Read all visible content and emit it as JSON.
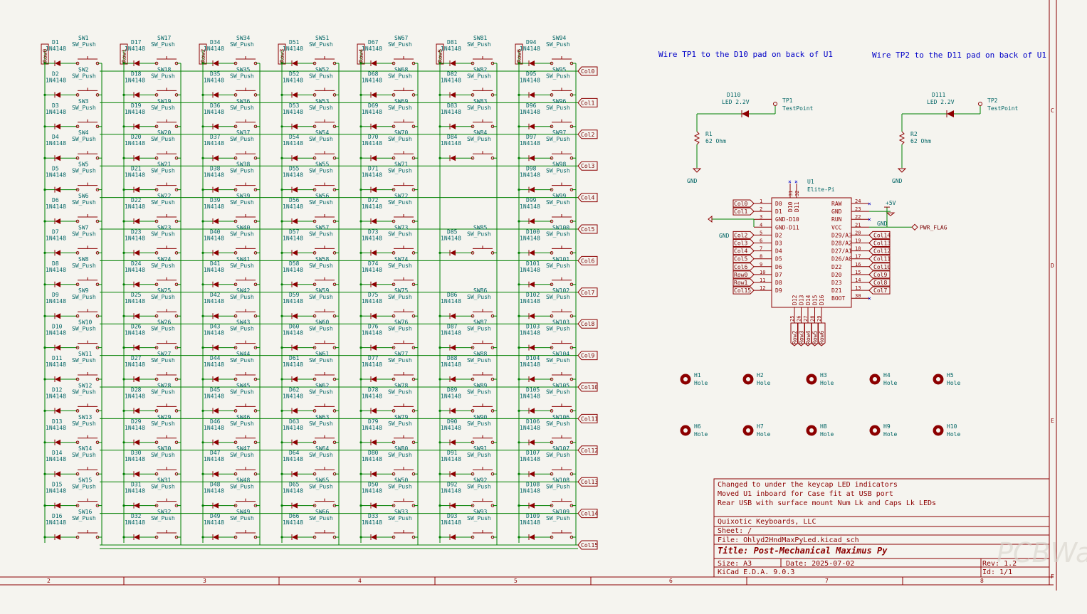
{
  "sheet": {
    "row_flags": [
      "Row0",
      "Row1",
      "Row2",
      "Row3",
      "Row4",
      "Row5",
      "Row6"
    ],
    "col_labels": [
      "Col0",
      "Col1",
      "Col2",
      "Col3",
      "Col4",
      "Col5",
      "Col6",
      "Col7",
      "Col8",
      "Col9",
      "Col10",
      "Col11",
      "Col12",
      "Col13",
      "Col14",
      "Col15"
    ],
    "diode_value": "1N4148",
    "switch_value": "SW_Push",
    "matrix_columns": [
      {
        "d": [
          "D1",
          "D2",
          "D3",
          "D4",
          "D5",
          "D6",
          "D7",
          "D8",
          "D9",
          "D10",
          "D11",
          "D12",
          "D13",
          "D14",
          "D15",
          "D16"
        ],
        "sw": [
          "SW1",
          "SW2",
          "SW3",
          "SW4",
          "SW5",
          "SW6",
          "SW7",
          "SW8",
          "SW9",
          "SW10",
          "SW11",
          "SW12",
          "SW13",
          "SW14",
          "SW15",
          "SW16"
        ]
      },
      {
        "d": [
          "D17",
          "D18",
          "D19",
          "D20",
          "D21",
          "D22",
          "D23",
          "D24",
          "D25",
          "D26",
          "D27",
          "D28",
          "D29",
          "D30",
          "D31",
          "D32"
        ],
        "sw": [
          "SW17",
          "SW18",
          "SW19",
          "SW20",
          "SW21",
          "SW22",
          "SW23",
          "SW24",
          "SW25",
          "SW26",
          "SW27",
          "SW28",
          "SW29",
          "SW30",
          "SW31",
          "SW32"
        ]
      },
      {
        "d": [
          "D34",
          "D35",
          "D36",
          "D37",
          "D38",
          "D39",
          "D40",
          "D41",
          "D42",
          "D43",
          "D44",
          "D45",
          "D46",
          "D47",
          "D48",
          "D49"
        ],
        "sw": [
          "SW34",
          "SW35",
          "SW36",
          "SW37",
          "SW38",
          "SW39",
          "SW40",
          "SW41",
          "SW42",
          "SW43",
          "SW44",
          "SW45",
          "SW46",
          "SW47",
          "SW48",
          "SW49"
        ]
      },
      {
        "d": [
          "D51",
          "D52",
          "D53",
          "D54",
          "D55",
          "D56",
          "D57",
          "D58",
          "D59",
          "D60",
          "D61",
          "D62",
          "D63",
          "D64",
          "D65",
          "D66"
        ],
        "sw": [
          "SW51",
          "SW52",
          "SW53",
          "SW54",
          "SW55",
          "SW56",
          "SW57",
          "SW58",
          "SW59",
          "SW60",
          "SW61",
          "SW62",
          "SW63",
          "SW64",
          "SW65",
          "SW66"
        ]
      },
      {
        "d": [
          "D67",
          "D68",
          "D69",
          "D70",
          "D71",
          "D72",
          "D73",
          "D74",
          "D75",
          "D76",
          "D77",
          "D78",
          "D79",
          "D80",
          "D50",
          "D33"
        ],
        "sw": [
          "SW67",
          "SW68",
          "SW69",
          "SW70",
          "SW71",
          "SW72",
          "SW73",
          "SW74",
          "SW75",
          "SW76",
          "SW77",
          "SW78",
          "SW79",
          "SW80",
          "SW50",
          "SW33"
        ]
      },
      {
        "d": [
          "D81",
          "D82",
          "D83",
          "D84",
          "",
          "",
          "D85",
          "",
          "D86",
          "D87",
          "D88",
          "D89",
          "D90",
          "D91",
          "D92",
          "D93"
        ],
        "sw": [
          "SW81",
          "SW82",
          "SW83",
          "SW84",
          "",
          "",
          "SW85",
          "",
          "SW86",
          "SW87",
          "SW88",
          "SW89",
          "SW90",
          "SW91",
          "SW92",
          "SW93"
        ]
      },
      {
        "d": [
          "D94",
          "D95",
          "D96",
          "D97",
          "D98",
          "D99",
          "D100",
          "D101",
          "D102",
          "D103",
          "D104",
          "D105",
          "D106",
          "D107",
          "D108",
          "D109"
        ],
        "sw": [
          "SW94",
          "SW95",
          "SW96",
          "SW97",
          "SW98",
          "SW99",
          "SW100",
          "SW101",
          "SW102",
          "SW103",
          "SW104",
          "SW105",
          "SW106",
          "SW107",
          "SW108",
          "SW109"
        ]
      }
    ],
    "notes": [
      "Wire TP1 to the D10 pad on back of U1",
      "Wire TP2 to the D11 pad on back of U1"
    ],
    "led1": {
      "ref": "D110",
      "value": "LED 2.2V"
    },
    "led2": {
      "ref": "D111",
      "value": "LED 2.2V"
    },
    "tp1": {
      "ref": "TP1",
      "value": "TestPoint"
    },
    "tp2": {
      "ref": "TP2",
      "value": "TestPoint"
    },
    "r1": {
      "ref": "R1",
      "value": "62 Ohm"
    },
    "r2": {
      "ref": "R2",
      "value": "62 Ohm"
    },
    "gnd": "GND",
    "pwr5v": "+5V",
    "pwr_flag": "PWR_FLAG",
    "u1": {
      "ref": "U1",
      "value": "Elite-Pi",
      "left_pins": [
        {
          "n": "1",
          "name": "D0",
          "net": "Col0"
        },
        {
          "n": "2",
          "name": "D1",
          "net": "Col1"
        },
        {
          "n": "3",
          "name": "GND-D10",
          "net": ""
        },
        {
          "n": "4",
          "name": "GND-D11",
          "net": ""
        },
        {
          "n": "5",
          "name": "D2",
          "net": "Col2"
        },
        {
          "n": "6",
          "name": "D3",
          "net": "Col3"
        },
        {
          "n": "7",
          "name": "D4",
          "net": "Col4"
        },
        {
          "n": "8",
          "name": "D5",
          "net": "Col5"
        },
        {
          "n": "9",
          "name": "D6",
          "net": "Col6"
        },
        {
          "n": "10",
          "name": "D7",
          "net": "Row0"
        },
        {
          "n": "11",
          "name": "D8",
          "net": "Row1"
        },
        {
          "n": "12",
          "name": "D9",
          "net": "Col15"
        }
      ],
      "right_pins": [
        {
          "n": "24",
          "name": "RAW",
          "net": ""
        },
        {
          "n": "23",
          "name": "GND",
          "net": ""
        },
        {
          "n": "22",
          "name": "RUN",
          "net": ""
        },
        {
          "n": "21",
          "name": "VCC",
          "net": ""
        },
        {
          "n": "20",
          "name": "D29/A3",
          "net": "Col14"
        },
        {
          "n": "19",
          "name": "D28/A2",
          "net": "Col13"
        },
        {
          "n": "18",
          "name": "D27/A1",
          "net": "Col12"
        },
        {
          "n": "17",
          "name": "D26/A0",
          "net": "Col11"
        },
        {
          "n": "16",
          "name": "D22",
          "net": "Col10"
        },
        {
          "n": "15",
          "name": "D20",
          "net": "Col9"
        },
        {
          "n": "14",
          "name": "D23",
          "net": "Col8"
        },
        {
          "n": "13",
          "name": "D21",
          "net": "Col7"
        },
        {
          "n": "30",
          "name": "BOOT",
          "net": ""
        }
      ],
      "top_pins": [
        {
          "n": "31",
          "name": "D10"
        },
        {
          "n": "32",
          "name": "D11"
        }
      ],
      "bottom_pins": [
        {
          "n": "25",
          "name": "D12",
          "net": "Row2"
        },
        {
          "n": "26",
          "name": "D13",
          "net": "Row3"
        },
        {
          "n": "27",
          "name": "D14",
          "net": "Row4"
        },
        {
          "n": "28",
          "name": "D15",
          "net": "Row5"
        },
        {
          "n": "29",
          "name": "D16",
          "net": "Row6"
        }
      ]
    },
    "holes": [
      {
        "ref": "H1",
        "value": "Hole"
      },
      {
        "ref": "H2",
        "value": "Hole"
      },
      {
        "ref": "H3",
        "value": "Hole"
      },
      {
        "ref": "H4",
        "value": "Hole"
      },
      {
        "ref": "H5",
        "value": "Hole"
      },
      {
        "ref": "H6",
        "value": "Hole"
      },
      {
        "ref": "H7",
        "value": "Hole"
      },
      {
        "ref": "H8",
        "value": "Hole"
      },
      {
        "ref": "H9",
        "value": "Hole"
      },
      {
        "ref": "H10",
        "value": "Hole"
      }
    ],
    "title_block": {
      "comments": [
        "Changed to under the keycap LED indicators",
        "Moved U1 inboard for Case fit at USB port",
        "Rear USB with surface mount Num Lk and Caps Lk LEDs"
      ],
      "company": "Quixotic Keyboards, LLC",
      "sheet": "Sheet: /",
      "file": "File: Ohlyd2HndMaxPyLed.kicad_sch",
      "title": "Title: Post-Mechanical Maximus Py",
      "size": "Size: A3",
      "date": "Date: 2025-07-02",
      "rev": "Rev: 1.2",
      "kicad": "KiCad E.D.A. 9.0.3",
      "id": "Id: 1/1"
    },
    "border_numbers": [
      "2",
      "3",
      "4",
      "5",
      "6",
      "7",
      "8"
    ],
    "border_letters": [
      "C",
      "D",
      "E",
      "F"
    ],
    "watermark": "PCBWay"
  }
}
